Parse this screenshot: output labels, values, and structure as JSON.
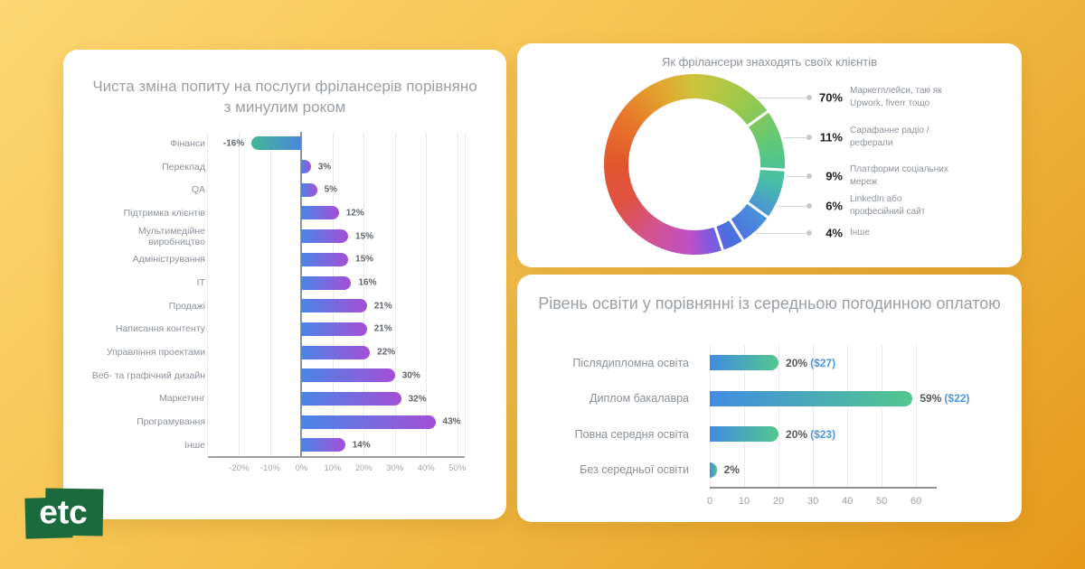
{
  "page": {
    "background_gradient": [
      "#fdd772",
      "#e5991b"
    ],
    "card_color": "#ffffff",
    "title_gray": "#9a9fa5",
    "label_gray": "#8b9199",
    "accent_blue": "#4a97e3"
  },
  "logo": {
    "text": "etc",
    "background_color": "#1b6a3d",
    "text_color": "#ffffff"
  },
  "chart_data": [
    {
      "id": "demand-change",
      "type": "bar",
      "orientation": "horizontal",
      "title": "Чиста зміна попиту на послуги фрілансерів порівняно з минулим роком",
      "categories": [
        "Фінанси",
        "Переклад",
        "QA",
        "Підтримка клієнтів",
        "Мультимедійне виробництво",
        "Адміністрування",
        "IT",
        "Продажі",
        "Написання контенту",
        "Управління проектами",
        "Веб- та графічний дизайн",
        "Маркетинг",
        "Програмування",
        "Інше"
      ],
      "values": [
        -16,
        3,
        5,
        12,
        15,
        15,
        16,
        21,
        21,
        22,
        30,
        32,
        43,
        14
      ],
      "value_labels": [
        "-16%",
        "3%",
        "5%",
        "12%",
        "15%",
        "15%",
        "16%",
        "21%",
        "21%",
        "22%",
        "30%",
        "32%",
        "43%",
        "14%"
      ],
      "xlim": [
        -30,
        53
      ],
      "x_tick_values": [
        -20,
        -10,
        0,
        10,
        20,
        30,
        40,
        50
      ],
      "x_ticks": [
        "-20%",
        "-10%",
        "0%",
        "10%",
        "20%",
        "30%",
        "40%",
        "50%"
      ],
      "grid": true,
      "bar_gradient_positive": [
        "#4a86e8",
        "#a44fd6"
      ],
      "bar_gradient_negative": [
        "#43b795",
        "#4a87dd"
      ]
    },
    {
      "id": "client-sources",
      "type": "pie",
      "donut": true,
      "title": "Як фрілансери знаходять своїх клієнтів",
      "slices": [
        {
          "pct": "70%",
          "value": 70,
          "label": "Маркетплейси, такі як Upwork, fiverr тощо"
        },
        {
          "pct": "11%",
          "value": 11,
          "label": "Сарафанне радіо / реферали"
        },
        {
          "pct": "9%",
          "value": 9,
          "label": "Платформи соціальних мереж"
        },
        {
          "pct": "6%",
          "value": 6,
          "label": "LinkedIn або професійний сайт"
        },
        {
          "pct": "4%",
          "value": 4,
          "label": "Інше"
        }
      ],
      "ring_gradient": [
        "#cdc43c",
        "#9bc94b",
        "#5ec878",
        "#48bfa6",
        "#4a90da",
        "#4d6ce2",
        "#8658dd",
        "#bf4fc6",
        "#d2548f",
        "#e05140",
        "#e2562d",
        "#e7762b",
        "#e2a52e"
      ],
      "legend_position": "right"
    },
    {
      "id": "education-pay",
      "type": "bar",
      "orientation": "horizontal",
      "title": "Рівень освіти у порівнянні із середньою погодинною оплатою",
      "categories": [
        "Післядипломна освіта",
        "Диплом бакалавра",
        "Повна середня освіта",
        "Без середньої освіти"
      ],
      "values": [
        20,
        59,
        20,
        2
      ],
      "value_labels": [
        "20%",
        "59%",
        "20%",
        "2%"
      ],
      "pay_labels": [
        "($27)",
        "($22)",
        "($23)",
        ""
      ],
      "xlim": [
        0,
        66
      ],
      "x_tick_values": [
        0,
        10,
        20,
        30,
        40,
        50,
        60
      ],
      "x_ticks": [
        "0",
        "10",
        "20",
        "30",
        "40",
        "50",
        "60"
      ],
      "grid": true,
      "bar_gradient": [
        "#418ce2",
        "#52c78e"
      ]
    }
  ]
}
